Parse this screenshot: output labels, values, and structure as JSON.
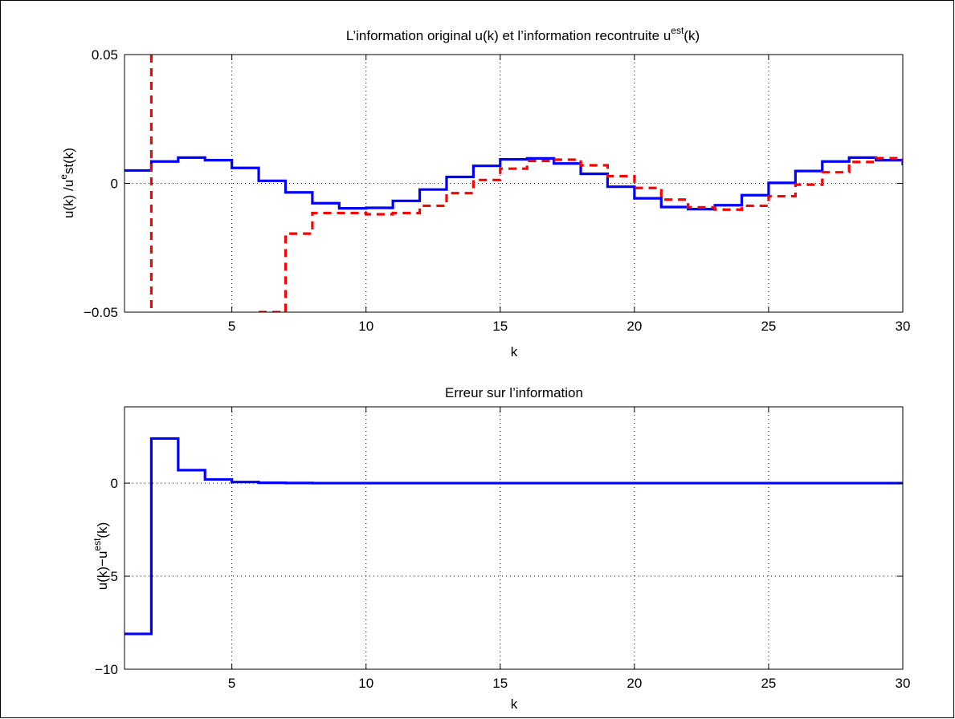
{
  "colors": {
    "series_blue": "#0000ff",
    "series_red": "#ff0000",
    "background": "#ffffff"
  },
  "chart_data": [
    {
      "type": "line",
      "step": "post",
      "title": {
        "main": "L’information original u(k) et l’information recontruite u",
        "sup": "est",
        "tail": "(k)"
      },
      "xlabel": "k",
      "ylabel": {
        "main": "u(k) /u",
        "sup": "e",
        "tail": "st(k)"
      },
      "xlim": [
        1,
        30
      ],
      "ylim": [
        -0.05,
        0.05
      ],
      "xticks": [
        5,
        10,
        15,
        20,
        25,
        30
      ],
      "yticks": [
        -0.05,
        0,
        0.05
      ],
      "ytick_labels": [
        "−0.05",
        "0",
        "0.05"
      ],
      "grid": true,
      "series": [
        {
          "color": "#0000ff",
          "style": "solid",
          "x": [
            1,
            2,
            3,
            4,
            5,
            6,
            7,
            8,
            9,
            10,
            11,
            12,
            13,
            14,
            15,
            16,
            17,
            18,
            19,
            20,
            21,
            22,
            23,
            24,
            25,
            26,
            27,
            28,
            29,
            30
          ],
          "y": [
            0.005,
            0.0085,
            0.01,
            0.009,
            0.006,
            0.001,
            -0.0035,
            -0.0077,
            -0.0097,
            -0.0095,
            -0.0068,
            -0.0024,
            0.0025,
            0.0068,
            0.0093,
            0.0097,
            0.0077,
            0.0037,
            -0.0013,
            -0.0058,
            -0.0092,
            -0.01,
            -0.0085,
            -0.0046,
            0.0002,
            0.0048,
            0.0085,
            0.01,
            0.009,
            0.0075
          ]
        },
        {
          "color": "#ff0000",
          "style": "dashed",
          "segments": [
            {
              "x": [
                2,
                3
              ],
              "y": [
                0.05,
                -0.05
              ]
            },
            {
              "x": [
                6,
                7,
                8,
                9,
                10,
                11,
                12,
                13,
                14,
                15,
                16,
                17,
                18,
                19,
                20,
                21,
                22,
                23,
                24,
                25,
                26,
                27,
                28,
                29,
                30
              ],
              "y": [
                -0.05,
                -0.0195,
                -0.0115,
                -0.0115,
                -0.012,
                -0.0115,
                -0.0087,
                -0.0038,
                0.0013,
                0.0057,
                0.0087,
                0.0092,
                0.007,
                0.0028,
                -0.0018,
                -0.0063,
                -0.0093,
                -0.0102,
                -0.0087,
                -0.005,
                -0.0005,
                0.0043,
                0.0083,
                0.0098,
                0.009
              ]
            }
          ]
        }
      ]
    },
    {
      "type": "line",
      "step": "post",
      "title": {
        "main": "Erreur sur l’information",
        "sup": "",
        "tail": ""
      },
      "xlabel": "k",
      "ylabel": {
        "main": "u(k)−u",
        "sup": "est",
        "tail": "(k)"
      },
      "xlim": [
        1,
        30
      ],
      "ylim": [
        -10,
        4.1
      ],
      "xticks": [
        5,
        10,
        15,
        20,
        25,
        30
      ],
      "yticks": [
        -10,
        -5,
        0
      ],
      "ytick_labels": [
        "−10",
        "−5",
        "0"
      ],
      "grid": true,
      "series": [
        {
          "color": "#0000ff",
          "style": "solid",
          "x": [
            1,
            2,
            3,
            4,
            5,
            6,
            7,
            8,
            9,
            10,
            11,
            12,
            13,
            14,
            15,
            16,
            17,
            18,
            19,
            20,
            21,
            22,
            23,
            24,
            25,
            26,
            27,
            28,
            29,
            30
          ],
          "y": [
            -8.1,
            2.4,
            0.7,
            0.2,
            0.06,
            0.02,
            0.01,
            0,
            0,
            0,
            0,
            0,
            0,
            0,
            0,
            0,
            0,
            0,
            0,
            0,
            0,
            0,
            0,
            0,
            0,
            0,
            0,
            0,
            0,
            0
          ]
        }
      ]
    }
  ]
}
